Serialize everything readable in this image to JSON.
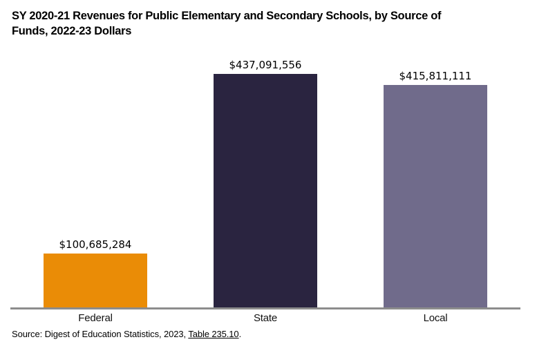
{
  "page": {
    "background": "#ffffff"
  },
  "chart_data": {
    "type": "bar",
    "title": "SY 2020-21 Revenues for Public Elementary and Secondary Schools, by Source of\nFunds, 2022-23 Dollars",
    "categories": [
      "Federal",
      "State",
      "Local"
    ],
    "values": [
      100685284,
      437091556,
      415811111
    ],
    "value_labels": [
      "$100,685,284",
      "$437,091,556",
      "$415,811,111"
    ],
    "bar_colors": [
      "#EA8C06",
      "#2A2440",
      "#706B8B"
    ],
    "xlabel": "",
    "ylabel": "",
    "ylim": [
      0,
      465000000
    ],
    "grid": false,
    "legend": "none",
    "axis_line_color": "#8C8C8C"
  },
  "source": {
    "prefix": "Source: Digest of Education Statistics, 2023, ",
    "link_text": "Table 235.10",
    "suffix": "."
  }
}
